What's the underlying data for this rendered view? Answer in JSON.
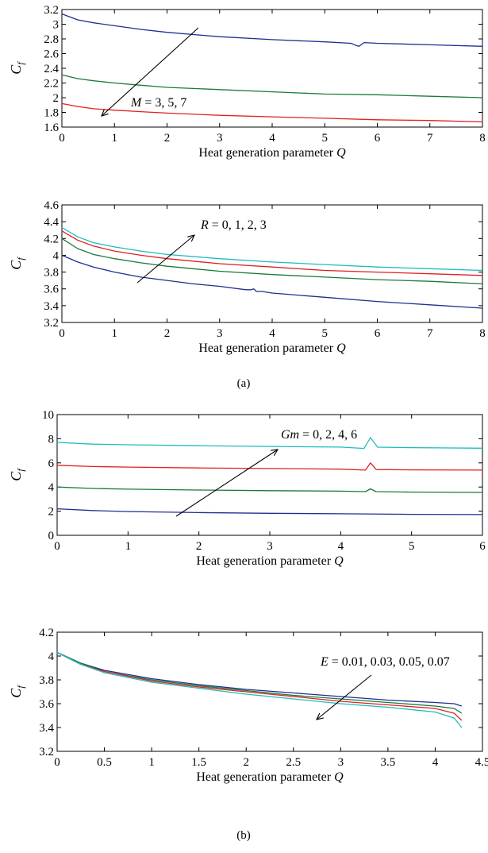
{
  "panels": [
    {
      "caption": "(a)"
    },
    {
      "caption": "(b)"
    }
  ],
  "chart_data": [
    {
      "type": "line",
      "xlabel_text": "Heat generation parameter ",
      "xlabel_var": "Q",
      "ylabel_main": "C",
      "ylabel_sub": "f",
      "xlim": [
        0,
        8
      ],
      "ylim": [
        1.6,
        3.2
      ],
      "xticks": [
        0,
        1,
        2,
        3,
        4,
        5,
        6,
        7,
        8
      ],
      "xtick_labels": [
        "0",
        "1",
        "2",
        "3",
        "4",
        "5",
        "6",
        "7",
        "8"
      ],
      "yticks": [
        1.6,
        1.8,
        2,
        2.2,
        2.4,
        2.6,
        2.8,
        3,
        3.2
      ],
      "ytick_labels": [
        "1.6",
        "1.8",
        "2",
        "2.2",
        "2.4",
        "2.6",
        "2.8",
        "3",
        "3.2"
      ],
      "annotation": {
        "var": "M",
        "values": " = 3, 5, 7"
      },
      "series": [
        {
          "color": "#1f2f8f",
          "x": [
            0,
            0.3,
            0.6,
            1,
            1.5,
            2,
            2.5,
            3,
            4,
            5,
            5.5,
            5.6,
            5.65,
            5.75,
            6,
            7,
            8
          ],
          "y": [
            3.14,
            3.06,
            3.02,
            2.98,
            2.93,
            2.89,
            2.86,
            2.83,
            2.79,
            2.76,
            2.74,
            2.71,
            2.7,
            2.75,
            2.74,
            2.72,
            2.7
          ]
        },
        {
          "color": "#1a7a3a",
          "x": [
            0,
            0.3,
            0.6,
            1,
            1.5,
            2,
            3,
            4,
            5,
            6,
            7,
            8
          ],
          "y": [
            2.31,
            2.26,
            2.23,
            2.2,
            2.17,
            2.14,
            2.11,
            2.08,
            2.05,
            2.04,
            2.02,
            2.0
          ]
        },
        {
          "color": "#e02020",
          "x": [
            0,
            0.3,
            0.6,
            1,
            1.5,
            2,
            3,
            4,
            5,
            6,
            7,
            8
          ],
          "y": [
            1.92,
            1.88,
            1.85,
            1.83,
            1.81,
            1.79,
            1.76,
            1.74,
            1.72,
            1.7,
            1.69,
            1.67
          ]
        }
      ]
    },
    {
      "type": "line",
      "xlabel_text": "Heat generation parameter ",
      "xlabel_var": "Q",
      "ylabel_main": "C",
      "ylabel_sub": "f",
      "xlim": [
        0,
        8
      ],
      "ylim": [
        3.2,
        4.6
      ],
      "xticks": [
        0,
        1,
        2,
        3,
        4,
        5,
        6,
        7,
        8
      ],
      "xtick_labels": [
        "0",
        "1",
        "2",
        "3",
        "4",
        "5",
        "6",
        "7",
        "8"
      ],
      "yticks": [
        3.2,
        3.4,
        3.6,
        3.8,
        4.0,
        4.2,
        4.4,
        4.6
      ],
      "ytick_labels": [
        "3.2",
        "3.4",
        "3.6",
        "3.8",
        "4",
        "4.2",
        "4.4",
        "4.6"
      ],
      "annotation": {
        "var": "R",
        "values": " = 0, 1, 2, 3"
      },
      "series": [
        {
          "color": "#1f2f8f",
          "x": [
            0,
            0.3,
            0.6,
            1,
            1.5,
            2,
            2.5,
            3,
            3.5,
            3.6,
            3.65,
            3.7,
            3.8,
            4,
            5,
            6,
            7,
            8
          ],
          "y": [
            4.0,
            3.92,
            3.86,
            3.8,
            3.74,
            3.7,
            3.66,
            3.63,
            3.59,
            3.59,
            3.6,
            3.57,
            3.57,
            3.55,
            3.5,
            3.45,
            3.41,
            3.37
          ]
        },
        {
          "color": "#1a7a3a",
          "x": [
            0,
            0.3,
            0.6,
            1,
            1.5,
            2,
            3,
            4,
            5,
            6,
            7,
            8
          ],
          "y": [
            4.2,
            4.08,
            4.01,
            3.96,
            3.91,
            3.87,
            3.81,
            3.77,
            3.74,
            3.71,
            3.69,
            3.66
          ]
        },
        {
          "color": "#e02020",
          "x": [
            0,
            0.3,
            0.6,
            1,
            1.5,
            2,
            3,
            4,
            5,
            6,
            7,
            8
          ],
          "y": [
            4.29,
            4.18,
            4.11,
            4.05,
            4.0,
            3.96,
            3.9,
            3.86,
            3.82,
            3.8,
            3.78,
            3.76
          ]
        },
        {
          "color": "#1fbcbc",
          "x": [
            0,
            0.3,
            0.6,
            1,
            1.5,
            2,
            3,
            4,
            5,
            6,
            7,
            8
          ],
          "y": [
            4.33,
            4.22,
            4.15,
            4.1,
            4.05,
            4.01,
            3.96,
            3.92,
            3.89,
            3.86,
            3.84,
            3.82
          ]
        }
      ]
    },
    {
      "type": "line",
      "xlabel_text": "Heat generation parameter ",
      "xlabel_var": "Q",
      "ylabel_main": "C",
      "ylabel_sub": "f",
      "xlim": [
        0,
        6
      ],
      "ylim": [
        0,
        10
      ],
      "xticks": [
        0,
        1,
        2,
        3,
        4,
        5,
        6
      ],
      "xtick_labels": [
        "0",
        "1",
        "2",
        "3",
        "4",
        "5",
        "6"
      ],
      "yticks": [
        0,
        2,
        4,
        6,
        8,
        10
      ],
      "ytick_labels": [
        "0",
        "2",
        "4",
        "6",
        "8",
        "10"
      ],
      "annotation": {
        "var": "Gm",
        "values": " = 0, 2, 4, 6"
      },
      "series": [
        {
          "color": "#1f2f8f",
          "x": [
            0,
            0.5,
            1,
            2,
            3,
            4,
            5,
            6
          ],
          "y": [
            2.2,
            2.05,
            1.97,
            1.88,
            1.82,
            1.78,
            1.74,
            1.72
          ]
        },
        {
          "color": "#1a7a3a",
          "x": [
            0,
            0.5,
            1,
            2,
            3,
            4,
            4.35,
            4.42,
            4.5,
            5,
            6
          ],
          "y": [
            4.0,
            3.88,
            3.82,
            3.75,
            3.7,
            3.66,
            3.62,
            3.85,
            3.62,
            3.58,
            3.55
          ]
        },
        {
          "color": "#e02020",
          "x": [
            0,
            0.5,
            1,
            2,
            3,
            4,
            4.35,
            4.42,
            4.5,
            5,
            6
          ],
          "y": [
            5.8,
            5.7,
            5.65,
            5.58,
            5.53,
            5.48,
            5.4,
            6.0,
            5.45,
            5.42,
            5.4
          ]
        },
        {
          "color": "#1fbcbc",
          "x": [
            0,
            0.5,
            1,
            2,
            3,
            4,
            4.33,
            4.42,
            4.52,
            5,
            6
          ],
          "y": [
            7.7,
            7.55,
            7.5,
            7.42,
            7.36,
            7.31,
            7.2,
            8.1,
            7.3,
            7.26,
            7.22
          ]
        }
      ]
    },
    {
      "type": "line",
      "xlabel_text": "Heat generation parameter ",
      "xlabel_var": "Q",
      "ylabel_main": "C",
      "ylabel_sub": "f",
      "xlim": [
        0,
        4.5
      ],
      "ylim": [
        3.2,
        4.2
      ],
      "xticks": [
        0,
        0.5,
        1,
        1.5,
        2,
        2.5,
        3,
        3.5,
        4,
        4.5
      ],
      "xtick_labels": [
        "0",
        "0.5",
        "1",
        "1.5",
        "2",
        "2.5",
        "3",
        "3.5",
        "4",
        "4.5"
      ],
      "yticks": [
        3.2,
        3.4,
        3.6,
        3.8,
        4.0,
        4.2
      ],
      "ytick_labels": [
        "3.2",
        "3.4",
        "3.6",
        "3.8",
        "4",
        "4.2"
      ],
      "annotation": {
        "var": "E",
        "values": " = 0.01, 0.03, 0.05, 0.07"
      },
      "series": [
        {
          "color": "#1f2f8f",
          "x": [
            0,
            0.25,
            0.5,
            1,
            1.5,
            2,
            2.5,
            3,
            3.5,
            4,
            4.2,
            4.28
          ],
          "y": [
            4.03,
            3.94,
            3.88,
            3.81,
            3.76,
            3.72,
            3.69,
            3.66,
            3.63,
            3.61,
            3.6,
            3.58
          ]
        },
        {
          "color": "#1a7a3a",
          "x": [
            0,
            0.25,
            0.5,
            1,
            1.5,
            2,
            2.5,
            3,
            3.5,
            4,
            4.2,
            4.28
          ],
          "y": [
            4.03,
            3.94,
            3.87,
            3.8,
            3.75,
            3.71,
            3.67,
            3.64,
            3.61,
            3.58,
            3.56,
            3.52
          ]
        },
        {
          "color": "#e02020",
          "x": [
            0,
            0.25,
            0.5,
            1,
            1.5,
            2,
            2.5,
            3,
            3.5,
            4,
            4.2,
            4.28
          ],
          "y": [
            4.03,
            3.93,
            3.87,
            3.79,
            3.74,
            3.7,
            3.66,
            3.62,
            3.59,
            3.56,
            3.52,
            3.46
          ]
        },
        {
          "color": "#1fbcbc",
          "x": [
            0,
            0.25,
            0.5,
            1,
            1.5,
            2,
            2.5,
            3,
            3.5,
            4,
            4.2,
            4.28
          ],
          "y": [
            4.03,
            3.93,
            3.86,
            3.78,
            3.73,
            3.68,
            3.64,
            3.6,
            3.57,
            3.53,
            3.48,
            3.4
          ]
        }
      ]
    }
  ]
}
